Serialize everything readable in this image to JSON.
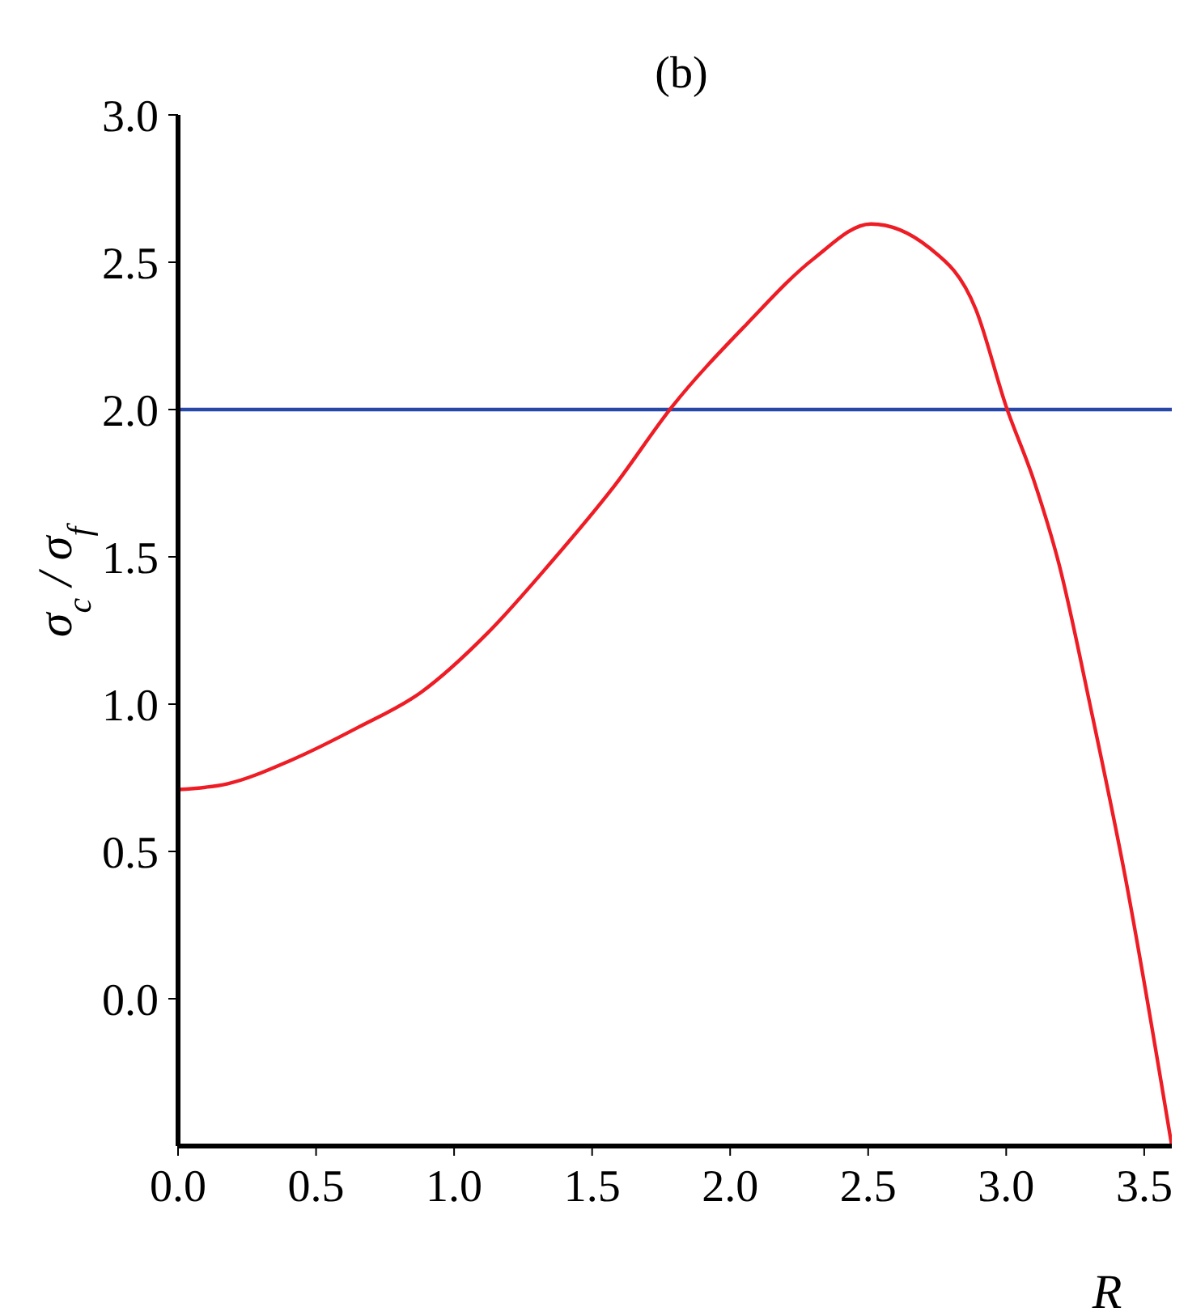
{
  "chart_data": {
    "type": "line",
    "title": "(b)",
    "xlabel": "R",
    "ylabel": "σ$_{c}$ / σ$_{f}$",
    "x": [
      0,
      0.18,
      0.41,
      0.65,
      0.88,
      1.12,
      1.35,
      1.58,
      1.79,
      2.06,
      2.3,
      2.51,
      2.72,
      2.89,
      3.0,
      3.1,
      3.19,
      3.31,
      3.43,
      3.6
    ],
    "series": [
      {
        "color": "#ee1c25",
        "values": [
          0.71,
          0.73,
          0.81,
          0.92,
          1.04,
          1.24,
          1.48,
          1.74,
          2.01,
          2.29,
          2.51,
          2.63,
          2.55,
          2.34,
          2.01,
          1.76,
          1.48,
          0.97,
          0.42,
          -0.5
        ]
      }
    ],
    "ref_lines": [
      {
        "axis": "y",
        "value": 2.0,
        "color": "#2748a8"
      }
    ],
    "xlim": [
      0,
      3.6
    ],
    "xticks": [
      {
        "value": 0,
        "label": "0.0"
      },
      {
        "value": 0.5,
        "label": "0.5"
      },
      {
        "value": 1,
        "label": "1.0"
      },
      {
        "value": 1.5,
        "label": "1.5"
      },
      {
        "value": 2,
        "label": "2.0"
      },
      {
        "value": 2.5,
        "label": "2.5"
      },
      {
        "value": 3,
        "label": "3.0"
      },
      {
        "value": 3.5,
        "label": "3.5"
      }
    ],
    "ylim": [
      -0.5,
      3.0
    ],
    "yticks": [
      {
        "value": 0,
        "label": "0.0"
      },
      {
        "value": 0.5,
        "label": "0.5"
      },
      {
        "value": 1,
        "label": "1.0"
      },
      {
        "value": 1.5,
        "label": "1.5"
      },
      {
        "value": 2,
        "label": "2.0"
      },
      {
        "value": 2.5,
        "label": "2.5"
      },
      {
        "value": 3,
        "label": "3.0"
      }
    ],
    "marker": "none",
    "line_style": "solid",
    "grid": false
  }
}
